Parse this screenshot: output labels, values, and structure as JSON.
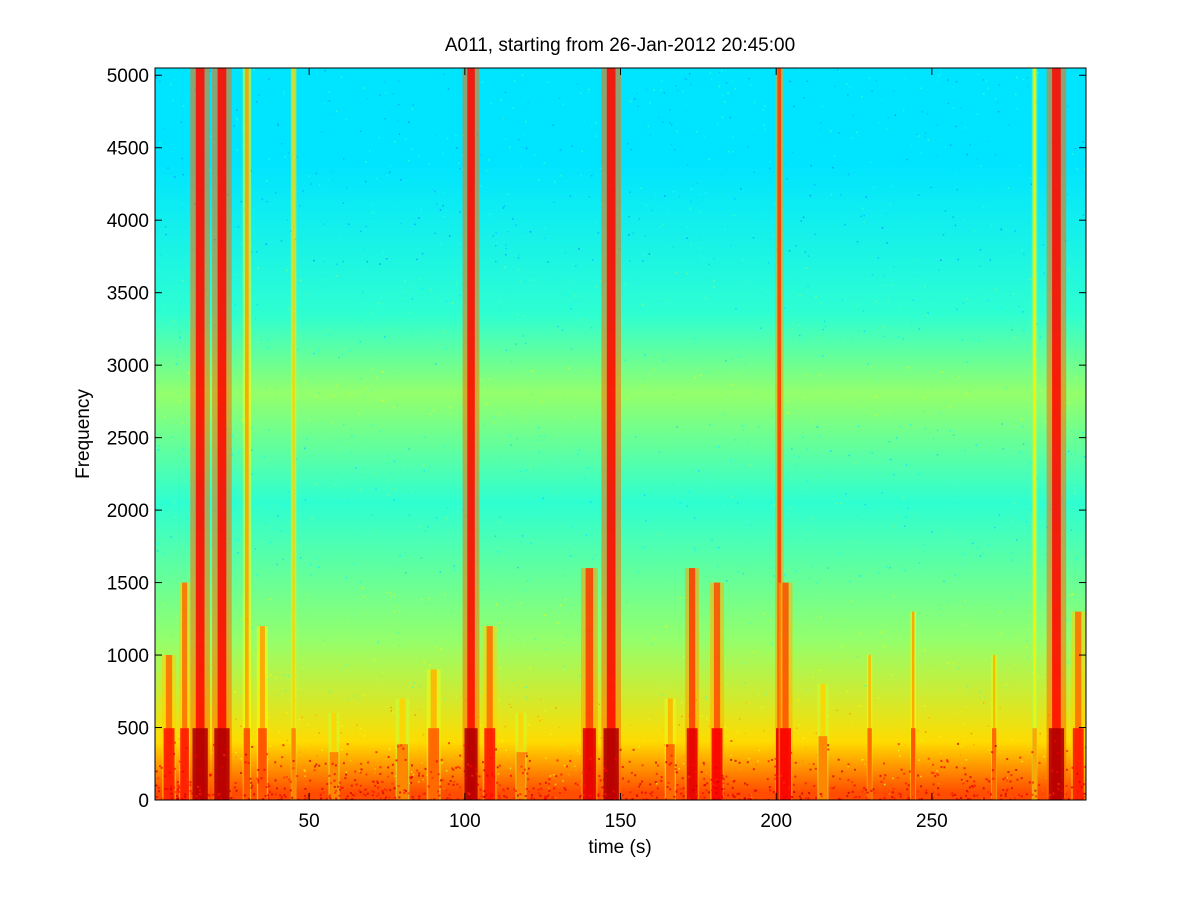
{
  "chart_data": {
    "type": "heatmap",
    "title": "A011, starting from 26-Jan-2012 20:45:00",
    "xlabel": "time (s)",
    "ylabel": "Frequency",
    "xlim": [
      0.5,
      299.5
    ],
    "ylim": [
      0,
      5050
    ],
    "xticks": [
      50,
      100,
      150,
      200,
      250
    ],
    "yticks": [
      0,
      500,
      1000,
      1500,
      2000,
      2500,
      3000,
      3500,
      4000,
      4500,
      5000
    ],
    "colormap": "jet",
    "grid": false,
    "legend": "none",
    "background_bands": [
      {
        "f_from": 3700,
        "f_to": 5050,
        "level": 0.35
      },
      {
        "f_from": 3000,
        "f_to": 3700,
        "level": 0.42
      },
      {
        "f_from": 2600,
        "f_to": 3000,
        "level": 0.52
      },
      {
        "f_from": 1500,
        "f_to": 2600,
        "level": 0.42
      },
      {
        "f_from": 700,
        "f_to": 1500,
        "level": 0.52
      },
      {
        "f_from": 100,
        "f_to": 700,
        "level": 0.66
      },
      {
        "f_from": 0,
        "f_to": 100,
        "level": 0.8
      }
    ],
    "events": [
      {
        "t": 5,
        "width_s": 2.5,
        "f_top": 1000,
        "intensity": 0.85
      },
      {
        "t": 10,
        "width_s": 2.0,
        "f_top": 1500,
        "intensity": 0.85
      },
      {
        "t": 15,
        "width_s": 3.5,
        "f_top": 5050,
        "intensity": 0.95
      },
      {
        "t": 22,
        "width_s": 3.5,
        "f_top": 5050,
        "intensity": 0.95
      },
      {
        "t": 30,
        "width_s": 1.5,
        "f_top": 5050,
        "intensity": 0.8
      },
      {
        "t": 35,
        "width_s": 2.0,
        "f_top": 1200,
        "intensity": 0.8
      },
      {
        "t": 45,
        "width_s": 1.0,
        "f_top": 5050,
        "intensity": 0.75
      },
      {
        "t": 58,
        "width_s": 2.0,
        "f_top": 600,
        "intensity": 0.75
      },
      {
        "t": 80,
        "width_s": 2.5,
        "f_top": 700,
        "intensity": 0.75
      },
      {
        "t": 90,
        "width_s": 2.5,
        "f_top": 900,
        "intensity": 0.78
      },
      {
        "t": 102,
        "width_s": 3.0,
        "f_top": 5050,
        "intensity": 0.95
      },
      {
        "t": 108,
        "width_s": 2.5,
        "f_top": 1200,
        "intensity": 0.85
      },
      {
        "t": 118,
        "width_s": 2.0,
        "f_top": 600,
        "intensity": 0.75
      },
      {
        "t": 140,
        "width_s": 3.0,
        "f_top": 1600,
        "intensity": 0.9
      },
      {
        "t": 147,
        "width_s": 3.5,
        "f_top": 5050,
        "intensity": 0.95
      },
      {
        "t": 166,
        "width_s": 2.0,
        "f_top": 700,
        "intensity": 0.78
      },
      {
        "t": 173,
        "width_s": 2.5,
        "f_top": 1600,
        "intensity": 0.9
      },
      {
        "t": 181,
        "width_s": 2.5,
        "f_top": 1500,
        "intensity": 0.88
      },
      {
        "t": 201,
        "width_s": 1.5,
        "f_top": 5050,
        "intensity": 0.9
      },
      {
        "t": 203,
        "width_s": 2.5,
        "f_top": 1500,
        "intensity": 0.88
      },
      {
        "t": 215,
        "width_s": 2.0,
        "f_top": 800,
        "intensity": 0.75
      },
      {
        "t": 230,
        "width_s": 1.0,
        "f_top": 1000,
        "intensity": 0.78
      },
      {
        "t": 244,
        "width_s": 1.0,
        "f_top": 1300,
        "intensity": 0.8
      },
      {
        "t": 270,
        "width_s": 1.0,
        "f_top": 1000,
        "intensity": 0.78
      },
      {
        "t": 283,
        "width_s": 1.0,
        "f_top": 5050,
        "intensity": 0.72
      },
      {
        "t": 290,
        "width_s": 3.5,
        "f_top": 5050,
        "intensity": 0.95
      },
      {
        "t": 297,
        "width_s": 2.5,
        "f_top": 1300,
        "intensity": 0.85
      }
    ]
  }
}
